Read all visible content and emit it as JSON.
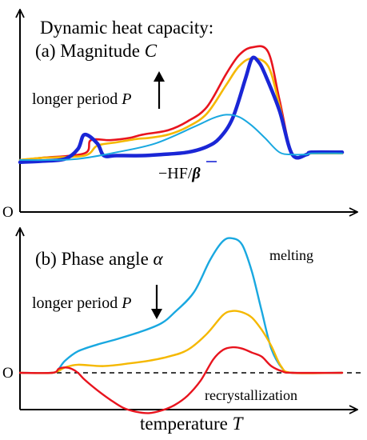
{
  "chart_data": [
    {
      "type": "line",
      "title": "Dynamic heat capacity:",
      "subtitle_prefix": "(a) Magnitude ",
      "subtitle_symbol": "C",
      "annotation_prefix": "longer period ",
      "annotation_symbol": "P",
      "annotation_arrow": "up",
      "origin_label": "O",
      "grid": false,
      "series": [
        {
          "color": "#e8141e",
          "x": [
            0,
            7,
            20,
            22,
            28,
            34,
            38,
            46,
            52,
            58,
            64,
            68,
            72,
            77,
            80.5,
            84.5,
            89,
            90.5,
            100
          ],
          "y": [
            0.0,
            0.02,
            0.06,
            0.18,
            0.18,
            0.2,
            0.23,
            0.27,
            0.35,
            0.48,
            0.78,
            0.95,
            1.02,
            0.98,
            0.55,
            0.05,
            0.05,
            0.06,
            0.06
          ]
        },
        {
          "color": "#f5b800",
          "x": [
            0,
            7,
            20,
            24,
            30,
            36,
            40,
            46,
            52,
            58,
            64,
            68,
            72,
            77,
            80.5,
            84.5,
            89,
            90.5,
            100
          ],
          "y": [
            0.0,
            0.02,
            0.04,
            0.13,
            0.16,
            0.19,
            0.2,
            0.23,
            0.3,
            0.42,
            0.68,
            0.85,
            0.92,
            0.85,
            0.5,
            0.05,
            0.05,
            0.06,
            0.06
          ]
        },
        {
          "color": "#1a26d6",
          "x": [
            0,
            7,
            14,
            18,
            20,
            24,
            26,
            30,
            38,
            44,
            52,
            58,
            62,
            66,
            70,
            72,
            74,
            76,
            80.5,
            84.5,
            89,
            90.5,
            100
          ],
          "y": [
            -0.02,
            -0.01,
            0.01,
            0.1,
            0.23,
            0.15,
            0.04,
            0.04,
            0.04,
            0.05,
            0.07,
            0.12,
            0.2,
            0.38,
            0.74,
            0.92,
            0.89,
            0.78,
            0.45,
            0.05,
            0.05,
            0.07,
            0.07
          ]
        },
        {
          "color": "#19a8e0",
          "x": [
            0,
            8,
            18,
            30,
            42,
            54,
            60,
            64,
            68,
            72,
            76,
            80.5,
            84.5,
            89,
            90.5,
            100
          ],
          "y": [
            0.0,
            0.0,
            0.01,
            0.07,
            0.15,
            0.3,
            0.38,
            0.41,
            0.39,
            0.31,
            0.2,
            0.07,
            0.05,
            0.05,
            0.06,
            0.06
          ]
        }
      ],
      "series_label_prefix": "−HF/",
      "series_label_symbol": "β",
      "series_label_color": "#1a26d6"
    },
    {
      "type": "line",
      "title": "(b) Phase angle ",
      "title_symbol": "α",
      "annotation_prefix": "longer period ",
      "annotation_symbol": "P",
      "annotation_arrow": "down",
      "origin_label": "O",
      "zero_line": "dashed",
      "grid": false,
      "labels": [
        {
          "text": "melting",
          "color": "#000000"
        },
        {
          "text": "recrystallization",
          "color": "#000000"
        }
      ],
      "xlabel_prefix": "temperature ",
      "xlabel_symbol": "T",
      "series": [
        {
          "color": "#19a8e0",
          "x": [
            0,
            10,
            12,
            14,
            18,
            24,
            30,
            38,
            44,
            48,
            54,
            59,
            63,
            66,
            69,
            72,
            75,
            78,
            81.5,
            84.5,
            100
          ],
          "y": [
            0.0,
            0.0,
            0.03,
            0.09,
            0.16,
            0.21,
            0.25,
            0.31,
            0.37,
            0.45,
            0.6,
            0.84,
            0.98,
            1.0,
            0.95,
            0.75,
            0.46,
            0.18,
            0.03,
            0.0,
            0.0
          ]
        },
        {
          "color": "#f5b800",
          "x": [
            0,
            10,
            14,
            18,
            26,
            34,
            40,
            46,
            52,
            58,
            63,
            66,
            69,
            72,
            75,
            78,
            81,
            84.5,
            100
          ],
          "y": [
            0.0,
            0.0,
            0.04,
            0.06,
            0.05,
            0.07,
            0.09,
            0.12,
            0.17,
            0.29,
            0.43,
            0.46,
            0.45,
            0.41,
            0.32,
            0.2,
            0.05,
            0.0,
            0.0
          ]
        },
        {
          "color": "#e8141e",
          "x": [
            0,
            10,
            12,
            14,
            16,
            18,
            20,
            24,
            28,
            32,
            36,
            40,
            44,
            48,
            52,
            56,
            60,
            63,
            66,
            69,
            72,
            75,
            78,
            81.5,
            84.5,
            100
          ],
          "y": [
            0.0,
            0.0,
            0.03,
            0.04,
            0.03,
            0.0,
            -0.05,
            -0.13,
            -0.2,
            -0.26,
            -0.29,
            -0.3,
            -0.28,
            -0.24,
            -0.17,
            -0.06,
            0.1,
            0.17,
            0.19,
            0.18,
            0.15,
            0.12,
            0.05,
            0.01,
            0.0,
            0.0
          ]
        }
      ]
    }
  ]
}
